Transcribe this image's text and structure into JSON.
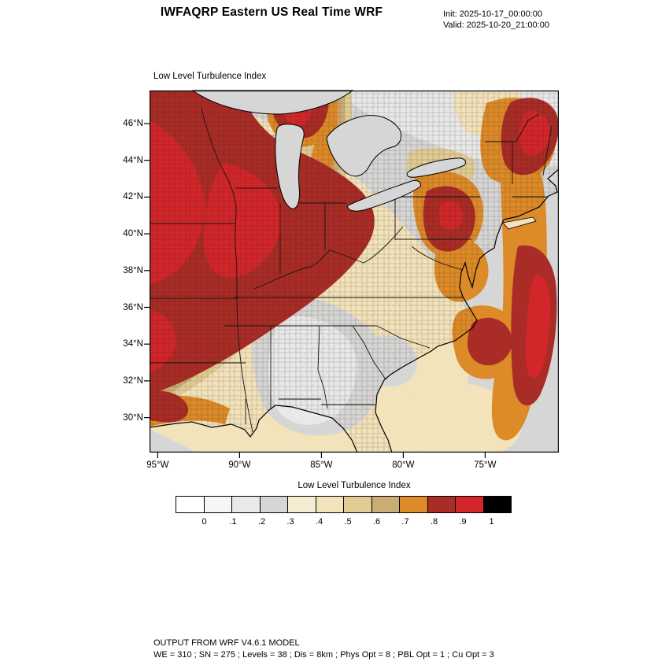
{
  "header": {
    "title": "IWFAQRP Eastern US Real Time WRF",
    "init_label": "Init: 2025-10-17_00:00:00",
    "valid_label": "Valid: 2025-10-20_21:00:00"
  },
  "map": {
    "subtitle": "Low Level Turbulence Index",
    "lat_labels": [
      "46°N",
      "44°N",
      "42°N",
      "40°N",
      "38°N",
      "36°N",
      "34°N",
      "32°N",
      "30°N"
    ],
    "lon_labels": [
      "95°W",
      "90°W",
      "85°W",
      "80°W",
      "75°W"
    ]
  },
  "colorbar": {
    "title": "Low Level Turbulence Index",
    "tick_labels": [
      "0",
      ".1",
      ".2",
      ".3",
      ".4",
      ".5",
      ".6",
      ".7",
      ".8",
      ".9",
      "1"
    ],
    "cell_colors": [
      "#ffffff",
      "#f6f6f6",
      "#e9e9e9",
      "#d6d6d6",
      "#f6ecd2",
      "#f2e3bb",
      "#e1cb95",
      "#c9ad74",
      "#dd8a28",
      "#a92c26",
      "#d2262a",
      "#000000"
    ]
  },
  "footer": {
    "line1": "OUTPUT FROM WRF V4.6.1 MODEL",
    "line2": "WE = 310 ; SN = 275 ; Levels = 38 ; Dis = 8km ; Phys Opt = 8 ; PBL Opt = 1 ; Cu Opt = 3"
  },
  "chart_data": {
    "type": "heatmap",
    "title": "Low Level Turbulence Index",
    "subtitle_init": "2025-10-17_00:00:00",
    "subtitle_valid": "2025-10-20_21:00:00",
    "x_tick_labels": [
      "95°W",
      "90°W",
      "85°W",
      "80°W",
      "75°W"
    ],
    "y_tick_labels": [
      "46°N",
      "44°N",
      "42°N",
      "40°N",
      "38°N",
      "36°N",
      "34°N",
      "32°N",
      "30°N"
    ],
    "extent": {
      "lon_west": -95.5,
      "lon_east": -70.5,
      "lat_south": 28.1,
      "lat_north": 47.8
    },
    "levels": [
      0,
      0.1,
      0.2,
      0.3,
      0.4,
      0.5,
      0.6,
      0.7,
      0.8,
      0.9,
      1.0
    ],
    "palette": [
      "#ffffff",
      "#f6f6f6",
      "#e9e9e9",
      "#d6d6d6",
      "#f6ecd2",
      "#f2e3bb",
      "#e1cb95",
      "#c9ad74",
      "#dd8a28",
      "#a92c26",
      "#d2262a",
      "#000000"
    ],
    "legend_position": "bottom",
    "grid": false,
    "regions": [
      {
        "area": "Upper Midwest / Ohio Valley (IA, MO, IL, IN, western OH, KY, WI)",
        "value_range": "0.8-0.9"
      },
      {
        "area": "Northern Minnesota / Wisconsin (top center)",
        "value_range": "0.7-0.9"
      },
      {
        "area": "Maine and northern New England",
        "value_range": "0.7-1.0"
      },
      {
        "area": "Eastern Pennsylvania / New Jersey / southern New York",
        "value_range": "0.7-0.9"
      },
      {
        "area": "Western Atlantic along eastern map edge",
        "value_range": "0.7-0.8"
      },
      {
        "area": "Offshore of the Carolinas",
        "value_range": "0.7-0.8"
      },
      {
        "area": "Mid-Atlantic coast / Delmarva offshore",
        "value_range": "0.6-0.7"
      },
      {
        "area": "Lower Michigan and upstate New York",
        "value_range": "0.4-0.6"
      },
      {
        "area": "Diagonal band Arkansas to Lake Erie (transition zone)",
        "value_range": "0.4-0.7"
      },
      {
        "area": "Tennessee / Mississippi / Alabama / Georgia interior",
        "value_range": "0.0-0.3"
      },
      {
        "area": "Southeast coastal waters and Gulf offshore",
        "value_range": "0.2-0.4"
      },
      {
        "area": "Louisiana Gulf coast",
        "value_range": "0.6-0.8"
      }
    ]
  }
}
